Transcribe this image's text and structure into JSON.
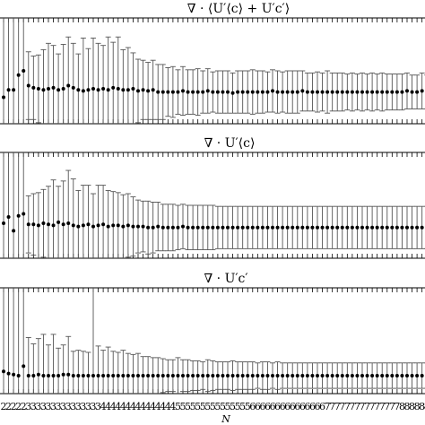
{
  "chart_data": [
    {
      "type": "scatter",
      "title": "∇ · ⟨U′⟨c⟩ + U′c′⟩",
      "xlabel": "",
      "ylabel": "",
      "grid": false,
      "x": [
        2,
        2,
        2,
        2,
        2,
        3,
        3,
        3,
        3,
        3,
        3,
        3,
        3,
        3,
        3,
        3,
        3,
        3,
        3,
        3,
        4,
        4,
        4,
        4,
        4,
        4,
        4,
        4,
        4,
        4,
        4,
        4,
        4,
        4,
        4,
        5,
        5,
        5,
        5,
        5,
        5,
        5,
        5,
        5,
        5,
        5,
        5,
        5,
        5,
        5,
        6,
        6,
        6,
        6,
        6,
        6,
        6,
        6,
        6,
        6,
        6,
        6,
        6,
        6,
        6,
        7,
        7,
        7,
        7,
        7,
        7,
        7,
        7,
        7,
        7,
        7,
        7,
        7,
        7,
        7,
        8,
        8,
        8,
        8,
        8,
        8
      ],
      "series": [
        {
          "values": [
            2.5,
            3.2,
            3.2,
            4.6,
            5.0,
            3.6,
            3.4,
            3.3,
            3.2,
            3.3,
            3.4,
            3.2,
            3.3,
            3.6,
            3.4,
            3.2,
            3.1,
            3.2,
            3.3,
            3.2,
            3.3,
            3.2,
            3.4,
            3.3,
            3.2,
            3.2,
            3.3,
            3.1,
            3.2,
            3.1,
            3.2,
            3.0,
            3.0,
            3.0,
            3.0,
            3.0,
            3.1,
            3.0,
            3.0,
            3.0,
            3.0,
            3.1,
            3.0,
            3.0,
            3.0,
            3.0,
            2.9,
            3.0,
            3.0,
            3.0,
            3.0,
            3.0,
            3.0,
            3.0,
            3.1,
            3.0,
            3.0,
            3.0,
            3.0,
            3.0,
            3.1,
            3.0,
            3.0,
            3.0,
            3.0,
            3.0,
            3.0,
            3.0,
            3.0,
            3.0,
            3.0,
            3.0,
            3.0,
            3.0,
            3.0,
            3.0,
            3.0,
            3.0,
            3.0,
            3.0,
            3.0,
            3.1,
            3.0,
            3.0,
            3.1,
            3.0
          ],
          "errors": [
            10,
            10,
            10,
            10,
            10,
            3.2,
            3.0,
            3.2,
            3.8,
            4.3,
            4.0,
            3.4,
            4.2,
            4.6,
            4.2,
            3.4,
            5.0,
            3.9,
            4.8,
            4.4,
            4.1,
            5.0,
            4.3,
            4.9,
            3.8,
            4.0,
            3.4,
            3.0,
            2.8,
            2.7,
            2.8,
            2.6,
            2.6,
            2.3,
            2.4,
            2.1,
            2.3,
            2.1,
            2.1,
            2.2,
            2.0,
            2.1,
            1.9,
            2.0,
            2.0,
            2.0,
            1.9,
            2.0,
            2.0,
            2.0,
            2.1,
            2.0,
            2.0,
            1.9,
            2.0,
            2.0,
            1.9,
            2.0,
            2.0,
            2.0,
            1.9,
            1.8,
            1.8,
            1.9,
            1.8,
            2.0,
            1.8,
            1.8,
            1.8,
            1.7,
            1.8,
            1.7,
            1.8,
            1.7,
            1.8,
            1.7,
            1.8,
            1.7,
            1.7,
            1.7,
            1.7,
            1.7,
            1.6,
            1.6,
            1.7,
            1.6
          ]
        }
      ]
    },
    {
      "type": "scatter",
      "title": "∇ · U′⟨c⟩",
      "xlabel": "",
      "ylabel": "",
      "grid": false,
      "x": [
        2,
        2,
        2,
        2,
        2,
        3,
        3,
        3,
        3,
        3,
        3,
        3,
        3,
        3,
        3,
        3,
        3,
        3,
        3,
        3,
        4,
        4,
        4,
        4,
        4,
        4,
        4,
        4,
        4,
        4,
        4,
        4,
        4,
        4,
        4,
        5,
        5,
        5,
        5,
        5,
        5,
        5,
        5,
        5,
        5,
        5,
        5,
        5,
        5,
        5,
        6,
        6,
        6,
        6,
        6,
        6,
        6,
        6,
        6,
        6,
        6,
        6,
        6,
        6,
        6,
        7,
        7,
        7,
        7,
        7,
        7,
        7,
        7,
        7,
        7,
        7,
        7,
        7,
        7,
        7,
        8,
        8,
        8,
        8,
        8,
        8
      ],
      "series": [
        {
          "values": [
            3.3,
            3.9,
            2.6,
            4.0,
            4.2,
            3.2,
            3.2,
            3.1,
            3.3,
            3.2,
            3.1,
            3.4,
            3.2,
            3.3,
            3.1,
            3.0,
            3.1,
            3.2,
            3.0,
            3.1,
            3.2,
            3.0,
            3.1,
            3.1,
            3.0,
            3.1,
            3.0,
            3.0,
            3.0,
            2.9,
            2.9,
            3.0,
            2.9,
            2.9,
            2.9,
            2.9,
            3.0,
            2.9,
            2.9,
            2.9,
            2.9,
            2.9,
            2.9,
            2.9,
            2.9,
            2.9,
            2.9,
            2.9,
            2.9,
            2.9,
            2.9,
            2.9,
            2.9,
            2.9,
            2.9,
            2.9,
            2.9,
            2.9,
            2.9,
            2.9,
            2.9,
            2.9,
            2.9,
            2.9,
            2.9,
            2.9,
            2.9,
            2.9,
            2.9,
            2.9,
            2.9,
            2.9,
            2.9,
            2.9,
            2.9,
            2.9,
            2.9,
            2.9,
            2.9,
            2.9,
            2.9,
            2.9,
            2.9,
            2.9,
            2.9,
            2.9
          ],
          "errors": [
            10,
            10,
            10,
            10,
            10,
            2.7,
            2.9,
            3.1,
            3.2,
            3.6,
            4.3,
            3.4,
            4.1,
            5.0,
            4.4,
            3.4,
            3.8,
            3.7,
            3.1,
            3.8,
            3.7,
            3.4,
            3.2,
            3.1,
            3.0,
            3.0,
            2.8,
            2.5,
            2.4,
            2.5,
            2.4,
            2.3,
            2.2,
            2.2,
            2.2,
            2.1,
            2.1,
            2.1,
            2.1,
            2.1,
            2.1,
            2.1,
            2.1,
            2.0,
            2.0,
            2.0,
            2.0,
            2.0,
            2.0,
            2.0,
            2.0,
            2.0,
            2.0,
            2.0,
            2.0,
            2.0,
            2.0,
            2.0,
            2.0,
            2.0,
            2.0,
            2.0,
            2.0,
            2.0,
            2.0,
            2.0,
            2.0,
            2.0,
            2.0,
            2.0,
            2.0,
            2.0,
            2.0,
            2.0,
            2.0,
            2.0,
            2.0,
            2.0,
            2.0,
            2.0,
            2.0,
            2.0,
            2.0,
            2.0,
            2.0,
            2.0
          ]
        }
      ]
    },
    {
      "type": "scatter",
      "title": "∇ · U′c′",
      "xlabel": "N",
      "ylabel": "",
      "grid": false,
      "x": [
        2,
        2,
        2,
        2,
        2,
        3,
        3,
        3,
        3,
        3,
        3,
        3,
        3,
        3,
        3,
        3,
        3,
        3,
        3,
        3,
        4,
        4,
        4,
        4,
        4,
        4,
        4,
        4,
        4,
        4,
        4,
        4,
        4,
        4,
        4,
        5,
        5,
        5,
        5,
        5,
        5,
        5,
        5,
        5,
        5,
        5,
        5,
        5,
        5,
        5,
        6,
        6,
        6,
        6,
        6,
        6,
        6,
        6,
        6,
        6,
        6,
        6,
        6,
        6,
        6,
        7,
        7,
        7,
        7,
        7,
        7,
        7,
        7,
        7,
        7,
        7,
        7,
        7,
        7,
        7,
        8,
        8,
        8,
        8,
        8,
        8
      ],
      "series": [
        {
          "values": [
            2.1,
            1.9,
            1.8,
            1.7,
            2.6,
            1.7,
            1.7,
            1.8,
            1.7,
            1.7,
            1.7,
            1.7,
            1.8,
            1.8,
            1.7,
            1.7,
            1.7,
            1.7,
            1.7,
            1.7,
            1.7,
            1.7,
            1.7,
            1.7,
            1.7,
            1.7,
            1.7,
            1.7,
            1.7,
            1.7,
            1.7,
            1.7,
            1.7,
            1.7,
            1.7,
            1.7,
            1.7,
            1.7,
            1.7,
            1.7,
            1.7,
            1.7,
            1.7,
            1.7,
            1.7,
            1.7,
            1.7,
            1.7,
            1.7,
            1.7,
            1.7,
            1.7,
            1.7,
            1.7,
            1.7,
            1.7,
            1.7,
            1.7,
            1.7,
            1.7,
            1.7,
            1.7,
            1.7,
            1.7,
            1.7,
            1.7,
            1.7,
            1.7,
            1.7,
            1.7,
            1.7,
            1.7,
            1.7,
            1.7,
            1.7,
            1.7,
            1.7,
            1.7,
            1.7,
            1.7,
            1.7,
            1.7,
            1.7,
            1.7,
            1.7,
            1.7
          ],
          "errors": [
            10,
            10,
            10,
            10,
            10,
            3.6,
            3.0,
            3.4,
            3.9,
            2.9,
            3.9,
            2.6,
            2.8,
            3.6,
            2.3,
            2.4,
            2.3,
            2.2,
            10,
            2.8,
            2.4,
            2.7,
            2.3,
            2.2,
            2.4,
            2.1,
            2.0,
            2.1,
            1.8,
            1.8,
            1.7,
            1.7,
            1.6,
            1.5,
            1.5,
            1.7,
            1.5,
            1.5,
            1.4,
            1.4,
            1.3,
            1.5,
            1.4,
            1.3,
            1.3,
            1.3,
            1.4,
            1.3,
            1.3,
            1.3,
            1.3,
            1.2,
            1.3,
            1.3,
            1.2,
            1.3,
            1.2,
            1.2,
            1.2,
            1.2,
            1.2,
            1.2,
            1.2,
            1.2,
            1.2,
            1.2,
            1.2,
            1.2,
            1.2,
            1.2,
            1.2,
            1.2,
            1.2,
            1.2,
            1.2,
            1.2,
            1.2,
            1.2,
            1.2,
            1.2,
            1.2,
            1.2,
            1.2,
            1.2,
            1.2,
            1.2
          ]
        }
      ]
    }
  ]
}
